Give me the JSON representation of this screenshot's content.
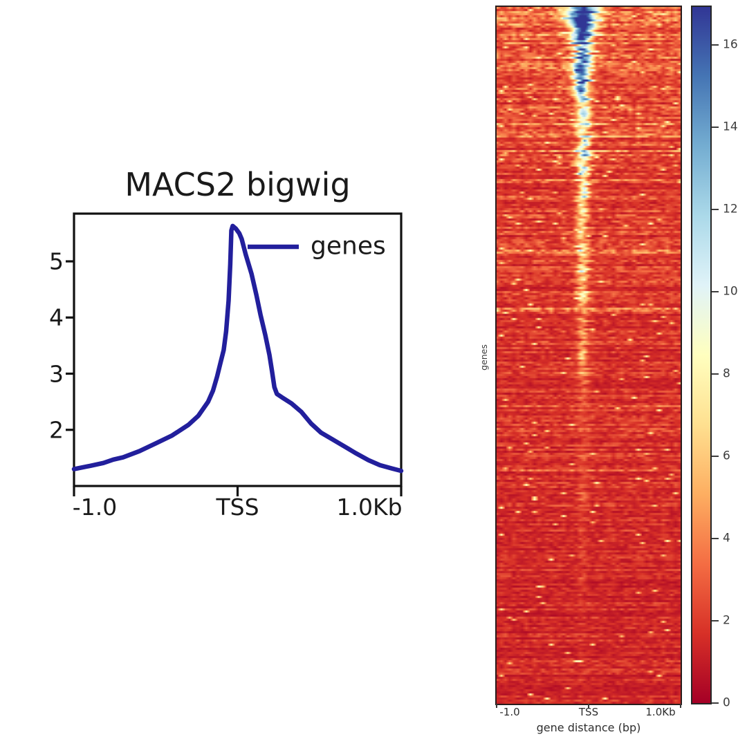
{
  "figure": {
    "background": "#ffffff",
    "description": "deepTools plotHeatmap-style figure: TSS meta-profile line plot (left) and per-gene signal heatmap with colorbar (right)"
  },
  "chart_data": [
    {
      "type": "line",
      "title": "MACS2 bigwig",
      "xlabel": "",
      "ylabel": "",
      "xlim": [
        -1000,
        1000
      ],
      "ylim": [
        1.0,
        5.85
      ],
      "grid": false,
      "legend_position": "upper right",
      "xticks": [
        {
          "value": -1000,
          "label": "-1.0"
        },
        {
          "value": 0,
          "label": "TSS"
        },
        {
          "value": 1000,
          "label": "1.0Kb"
        }
      ],
      "yticks": [
        5,
        4,
        3,
        2
      ],
      "series": [
        {
          "name": "genes",
          "color": "#221f9c",
          "points": [
            [
              -1000,
              1.3
            ],
            [
              -900,
              1.36
            ],
            [
              -820,
              1.41
            ],
            [
              -760,
              1.47
            ],
            [
              -700,
              1.51
            ],
            [
              -600,
              1.62
            ],
            [
              -500,
              1.76
            ],
            [
              -400,
              1.9
            ],
            [
              -300,
              2.09
            ],
            [
              -240,
              2.25
            ],
            [
              -180,
              2.5
            ],
            [
              -150,
              2.7
            ],
            [
              -125,
              2.95
            ],
            [
              -105,
              3.19
            ],
            [
              -85,
              3.42
            ],
            [
              -70,
              3.75
            ],
            [
              -55,
              4.3
            ],
            [
              -45,
              4.95
            ],
            [
              -38,
              5.55
            ],
            [
              -30,
              5.63
            ],
            [
              -10,
              5.58
            ],
            [
              10,
              5.5
            ],
            [
              25,
              5.4
            ],
            [
              50,
              5.12
            ],
            [
              85,
              4.78
            ],
            [
              115,
              4.4
            ],
            [
              140,
              4.05
            ],
            [
              170,
              3.68
            ],
            [
              195,
              3.33
            ],
            [
              210,
              3.05
            ],
            [
              225,
              2.76
            ],
            [
              240,
              2.64
            ],
            [
              270,
              2.58
            ],
            [
              330,
              2.47
            ],
            [
              390,
              2.32
            ],
            [
              450,
              2.11
            ],
            [
              510,
              1.95
            ],
            [
              580,
              1.83
            ],
            [
              650,
              1.71
            ],
            [
              725,
              1.58
            ],
            [
              800,
              1.46
            ],
            [
              870,
              1.37
            ],
            [
              945,
              1.31
            ],
            [
              1000,
              1.27
            ]
          ]
        }
      ]
    },
    {
      "type": "heatmap",
      "xlabel": "gene distance (bp)",
      "ylabel": "genes",
      "xlim": [
        -1000,
        1000
      ],
      "xticks": [
        {
          "value": -1000,
          "label": "-1.0"
        },
        {
          "value": 0,
          "label": "TSS"
        },
        {
          "value": 1000,
          "label": "1.0Kb"
        }
      ],
      "vmin": 0,
      "vmax": 16.93,
      "colorbar_ticks": [
        16,
        14,
        12,
        10,
        8,
        6,
        4,
        2,
        0
      ],
      "colormap": "RdYlBu",
      "colormap_stops": [
        [
          0.0,
          "#a50026"
        ],
        [
          0.1,
          "#d73027"
        ],
        [
          0.2,
          "#f46d43"
        ],
        [
          0.3,
          "#fdae61"
        ],
        [
          0.4,
          "#fee090"
        ],
        [
          0.5,
          "#ffffbf"
        ],
        [
          0.6,
          "#e0f3f8"
        ],
        [
          0.7,
          "#abd9e9"
        ],
        [
          0.8,
          "#74add1"
        ],
        [
          0.9,
          "#4575b4"
        ],
        [
          1.0,
          "#313695"
        ]
      ],
      "summary": "Rows sorted by decreasing mean signal: strong blue TSS-centered enrichment in the top ~15% of rows, a narrowing pale/blue center streak through the upper third, fading to near-uniform dark red background toward the bottom",
      "procedural": {
        "seed": 42,
        "rows": 336,
        "cols": 133,
        "center_frac": 0.465,
        "center_jitter": 0.035,
        "sigma_frac_by_t": [
          [
            0,
            0.052
          ],
          [
            0.02,
            0.045
          ],
          [
            0.06,
            0.034
          ],
          [
            0.12,
            0.024
          ],
          [
            0.3,
            0.019
          ],
          [
            1,
            0.017
          ]
        ],
        "background": {
          "floor": 1.22,
          "scale": 1.5,
          "tau": 0.3
        },
        "row_groups": [
          {
            "t": [
              0,
              0.035
            ],
            "p": 1.0,
            "amp": [
              12,
              17
            ],
            "base": [
              8,
              11
            ]
          },
          {
            "t": [
              0.035,
              0.13
            ],
            "p": 0.8,
            "amp": [
              9,
              16
            ],
            "base": [
              3,
              7
            ]
          },
          {
            "t": [
              0.13,
              0.3
            ],
            "p": 0.6,
            "amp": [
              6,
              13
            ],
            "base": [
              2,
              5
            ]
          },
          {
            "t": [
              0.3,
              0.42
            ],
            "p": 0.45,
            "amp": [
              4,
              9
            ],
            "base": [
              1,
              3
            ]
          },
          {
            "t": [
              0.42,
              0.55
            ],
            "p": 0.25,
            "amp": [
              3,
              6.5
            ],
            "base": [
              0.6,
              2
            ]
          },
          {
            "t": [
              0.55,
              0.7
            ],
            "p": 0.12,
            "amp": [
              2,
              4.5
            ],
            "base": [
              0.3,
              1.2
            ]
          },
          {
            "t": [
              0.7,
              0.87
            ],
            "p": 0.05,
            "amp": [
              1.5,
              3
            ],
            "base": [
              0.1,
              0.8
            ]
          },
          {
            "t": [
              0.87,
              1.01
            ],
            "p": 0.02,
            "amp": [
              1,
              2
            ],
            "base": [
              0,
              0.5
            ]
          }
        ]
      }
    }
  ]
}
